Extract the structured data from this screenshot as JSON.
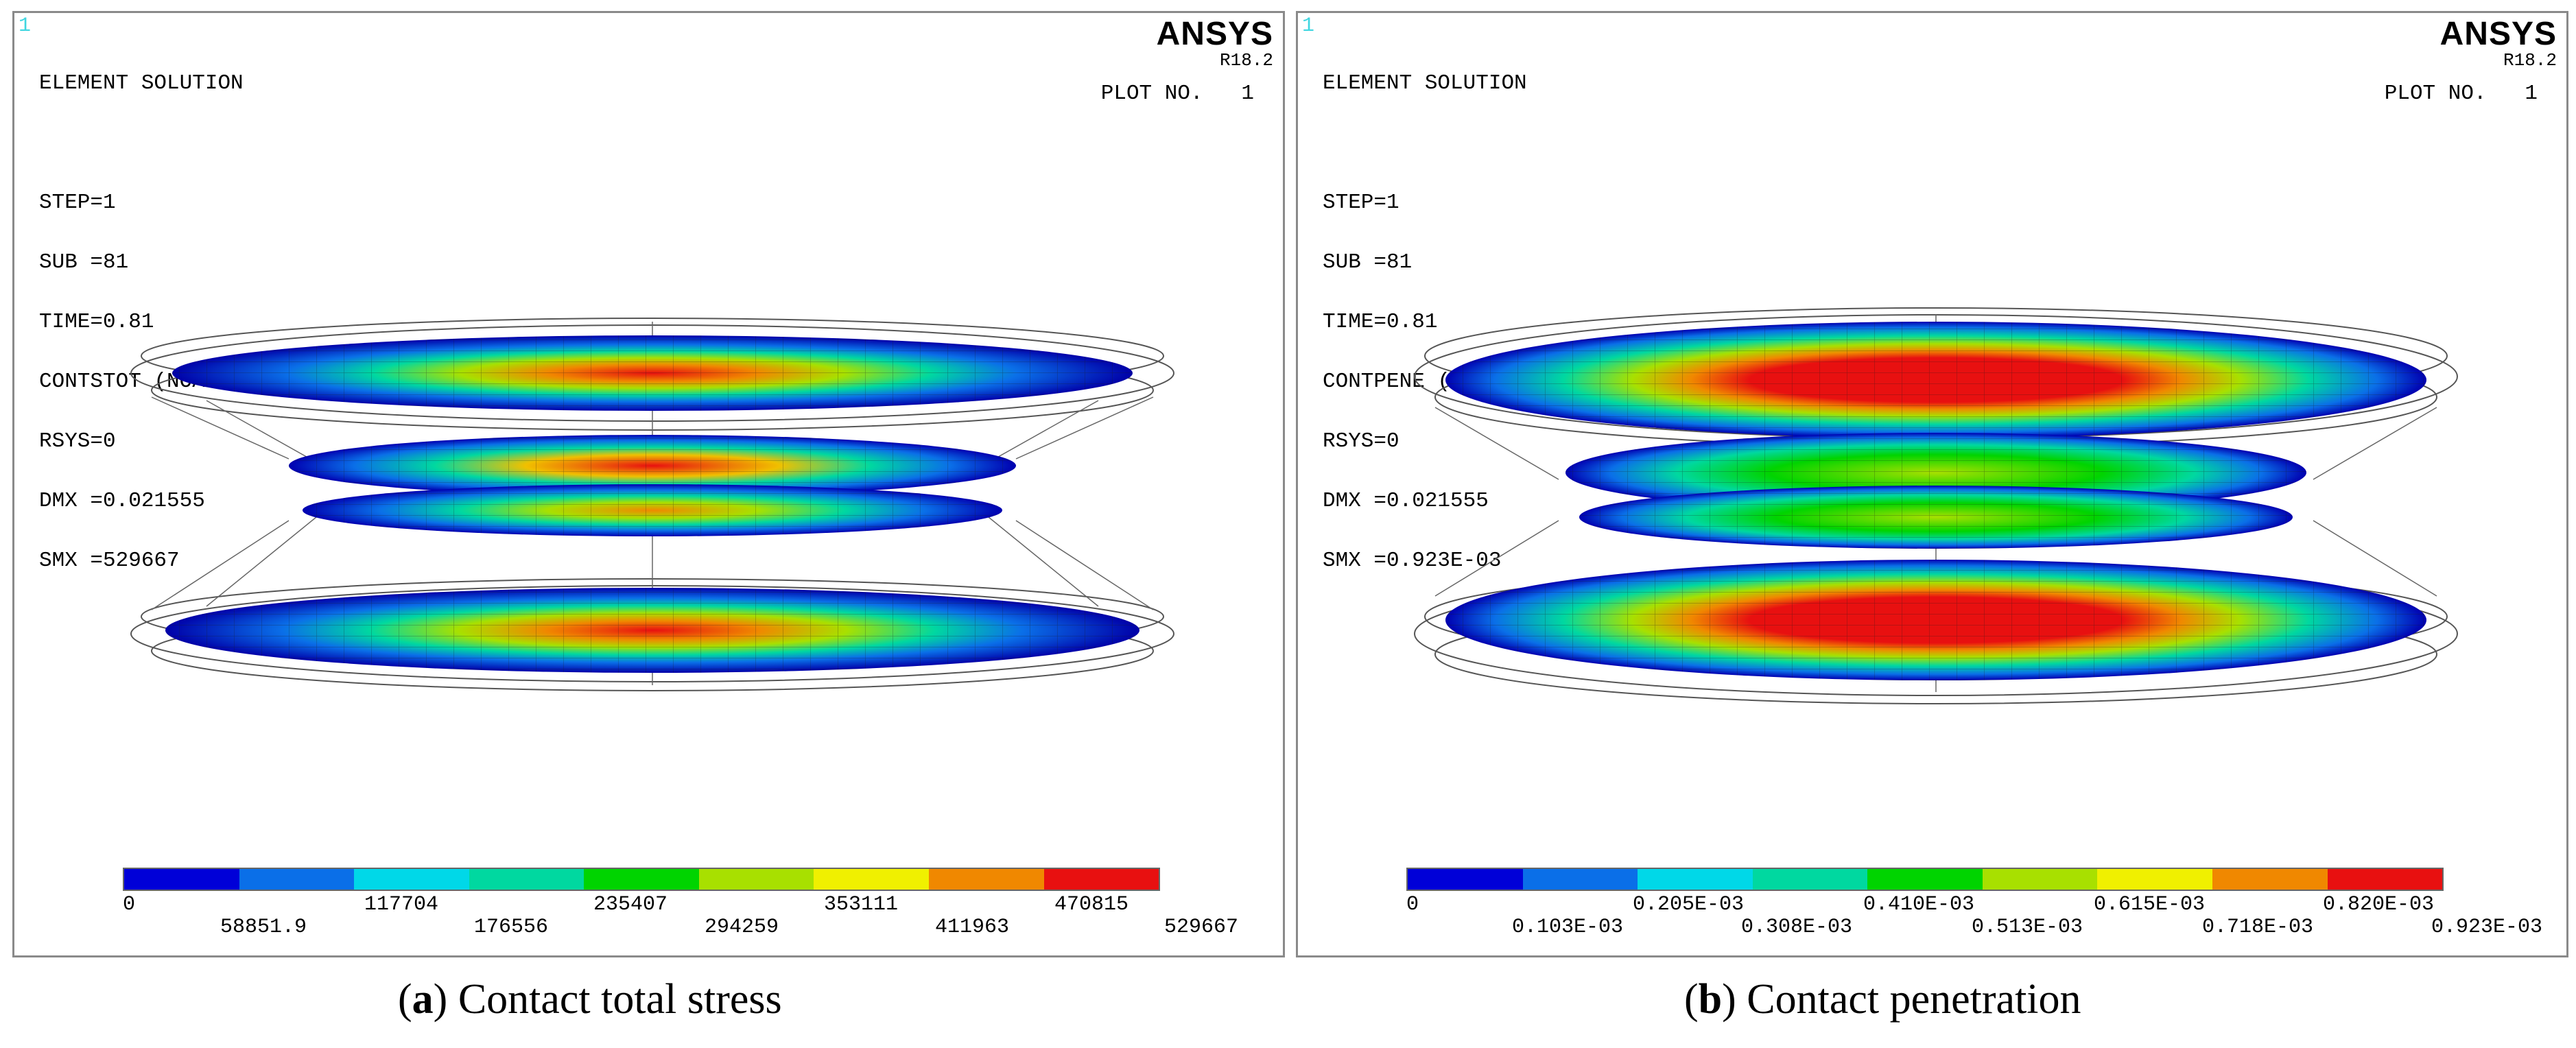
{
  "colors": {
    "scale": [
      "#0000d8",
      "#0a6fe8",
      "#00d8e8",
      "#00d8a0",
      "#00d400",
      "#a8e000",
      "#f0f000",
      "#f08800",
      "#e81010"
    ],
    "frame": "#8a8a8a",
    "window_number": "#3fd6e0"
  },
  "panel_a": {
    "window_number": "1",
    "title": "ELEMENT SOLUTION",
    "step": "STEP=1",
    "sub": "SUB =81",
    "time": "TIME=0.81",
    "item": "CONTSTOT (NOAVG)",
    "rsys": "RSYS=0",
    "dmx": "DMX =0.021555",
    "smx": "SMX =529667",
    "brand": "ANSYS",
    "version": "R18.2",
    "plot_no": "PLOT NO.   1",
    "legend_top": [
      "0",
      "117704",
      "235407",
      "353111",
      "470815"
    ],
    "legend_bottom": [
      "58851.9",
      "176556",
      "294259",
      "411963",
      "529667"
    ],
    "caption_letter": "a",
    "caption_text": "Contact total stress"
  },
  "panel_b": {
    "window_number": "1",
    "title": "ELEMENT SOLUTION",
    "step": "STEP=1",
    "sub": "SUB =81",
    "time": "TIME=0.81",
    "item": "CONTPENE (NOAVG)",
    "rsys": "RSYS=0",
    "dmx": "DMX =0.021555",
    "smx": "SMX =0.923E-03",
    "brand": "ANSYS",
    "version": "R18.2",
    "plot_no": "PLOT NO.   1",
    "legend_top": [
      "0",
      "0.205E-03",
      "0.410E-03",
      "0.615E-03",
      "0.820E-03"
    ],
    "legend_bottom": [
      "0.103E-03",
      "0.308E-03",
      "0.513E-03",
      "0.718E-03",
      "0.923E-03"
    ],
    "caption_letter": "b",
    "caption_text": "Contact penetration"
  }
}
